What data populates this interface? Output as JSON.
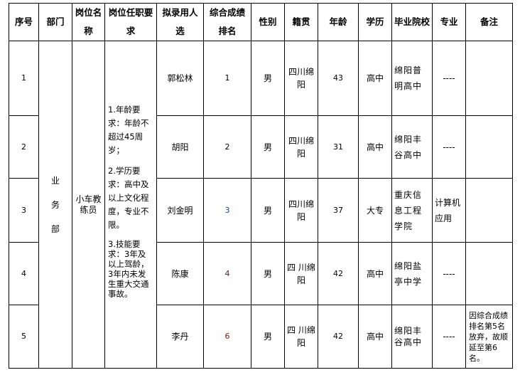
{
  "headers": [
    "序号",
    "部门",
    "岗位名称",
    "岗位任职要求",
    "拟录用人选",
    "综合成绩排名",
    "性别",
    "籍贯",
    "年龄",
    "学历",
    "毕业院校",
    "专业",
    "备注"
  ],
  "department": "业务部",
  "position": "小车教练员",
  "requirements": [
    "1.年龄要求：年龄不超过45周岁；",
    "2.学历要求：高中及以上文化程度，专业不限。",
    "3.技能要求：3年及以上驾龄，3年内未发生重大交通事故。"
  ],
  "rows": [
    {
      "no": "1",
      "name": "郭松林",
      "rank": "1",
      "gender": "男",
      "origin": "四川绵阳",
      "age": "43",
      "edu": "高中",
      "school": "绵阳普明高中",
      "major": "----",
      "note": ""
    },
    {
      "no": "2",
      "name": "胡阳",
      "rank": "2",
      "gender": "男",
      "origin": "四川绵阳",
      "age": "31",
      "edu": "高中",
      "school": "绵阳丰谷高中",
      "major": "----",
      "note": ""
    },
    {
      "no": "3",
      "name": "刘金明",
      "rank": "3",
      "gender": "男",
      "origin": "四川绵阳",
      "age": "37",
      "edu": "大专",
      "school": "重庆信息工程学院",
      "major": "计算机应用",
      "note": ""
    },
    {
      "no": "4",
      "name": "陈康",
      "rank": "4",
      "gender": "男",
      "origin": "四 川绵阳",
      "age": "42",
      "edu": "高中",
      "school": "绵阳盐亭中学",
      "major": "----",
      "note": ""
    },
    {
      "no": "5",
      "name": "李丹",
      "rank": "6",
      "gender": "男",
      "origin": "四 川绵阳",
      "age": "42",
      "edu": "高中",
      "school": "绵阳丰谷高中",
      "major": "----",
      "note": "因综合成绩排名第5名放弃，故顺延至第6名。"
    }
  ]
}
